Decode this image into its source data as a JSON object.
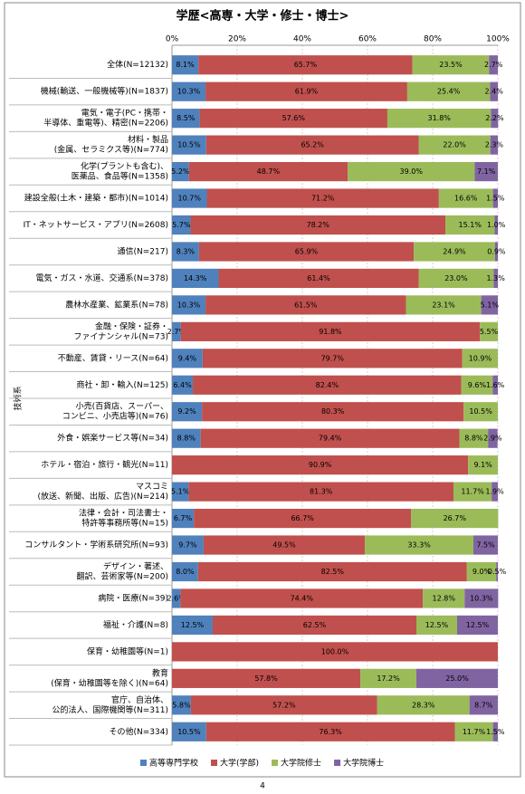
{
  "chart_data": {
    "type": "stacked-barh",
    "title": "学歴<高専・大学・修士・博士>",
    "ylabel": "技術系",
    "page_number": "4",
    "xlim": [
      0,
      100
    ],
    "xticks": [
      {
        "value": 0,
        "label": "0%"
      },
      {
        "value": 20,
        "label": "20%"
      },
      {
        "value": 40,
        "label": "40%"
      },
      {
        "value": 60,
        "label": "60%"
      },
      {
        "value": 80,
        "label": "80%"
      },
      {
        "value": 100,
        "label": "100%"
      }
    ],
    "grid": true,
    "legend": "bottom",
    "categories": [
      [
        "全体(N=12132)"
      ],
      [
        "機械(輸送、一般機械等)(N=1837)"
      ],
      [
        "電気・電子(PC・携帯・",
        "半導体、重電等)、精密(N=2206)"
      ],
      [
        "材料・製品",
        "(金属、セラミクス等)(N=774)"
      ],
      [
        "化学(プラントも含む)、",
        "医薬品、食品等(N=1358)"
      ],
      [
        "建設全般(土木・建築・都市)(N=1014)"
      ],
      [
        "IT・ネットサービス・アプリ(N=2608)"
      ],
      [
        "通信(N=217)"
      ],
      [
        "電気・ガス・水道、交通系(N=378)"
      ],
      [
        "農林水産業、鉱業系(N=78)"
      ],
      [
        "金融・保険・証券・",
        "ファイナンシャル(N=73)"
      ],
      [
        "不動産、賃貸・リース(N=64)"
      ],
      [
        "商社・卸・輸入(N=125)"
      ],
      [
        "小売(百貨店、スーパー、",
        "コンビニ、小売店等)(N=76)"
      ],
      [
        "外食・娯楽サービス等(N=34)"
      ],
      [
        "ホテル・宿泊・旅行・観光(N=11)"
      ],
      [
        "マスコミ",
        "(放送、新聞、出版、広告)(N=214)"
      ],
      [
        "法律・会計・司法書士・",
        "特許等事務所等(N=15)"
      ],
      [
        "コンサルタント・学術系研究所(N=93)"
      ],
      [
        "デザイン・著述、",
        "翻訳、芸術家等(N=200)"
      ],
      [
        "病院・医療(N=39)"
      ],
      [
        "福祉・介護(N=8)"
      ],
      [
        "保育・幼稚園等(N=1)"
      ],
      [
        "教育",
        "(保育・幼稚園等を除く)(N=64)"
      ],
      [
        "官庁、自治体、",
        "公的法人、国際機関等(N=311)"
      ],
      [
        "その他(N=334)"
      ]
    ],
    "series": [
      {
        "name": "高等専門学校",
        "color": "#4f81bd",
        "values": [
          8.1,
          10.3,
          8.5,
          10.5,
          5.2,
          10.7,
          5.7,
          8.3,
          14.3,
          10.3,
          2.7,
          9.4,
          6.4,
          9.2,
          8.8,
          null,
          5.1,
          6.7,
          9.7,
          8.0,
          2.6,
          12.5,
          null,
          null,
          5.8,
          10.5
        ],
        "value_labels": [
          "8.1%",
          "10.3%",
          "8.5%",
          "10.5%",
          "5.2%",
          "10.7%",
          "5.7%",
          "8.3%",
          "14.3%",
          "10.3%",
          "2.7%",
          "9.4%",
          "6.4%",
          "9.2%",
          "8.8%",
          null,
          "5.1%",
          "6.7%",
          "9.7%",
          "8.0%",
          "2.6%",
          "12.5%",
          null,
          null,
          "5.8%",
          "10.5%"
        ]
      },
      {
        "name": "大学(学部)",
        "color": "#c0504d",
        "values": [
          65.7,
          61.9,
          57.6,
          65.2,
          48.7,
          71.2,
          78.2,
          65.9,
          61.4,
          61.5,
          91.8,
          79.7,
          82.4,
          80.3,
          79.4,
          90.9,
          81.3,
          66.7,
          49.5,
          82.5,
          74.4,
          62.5,
          100.0,
          57.8,
          57.2,
          76.3
        ],
        "value_labels": [
          "65.7%",
          "61.9%",
          "57.6%",
          "65.2%",
          "48.7%",
          "71.2%",
          "78.2%",
          "65.9%",
          "61.4%",
          "61.5%",
          "91.8%",
          "79.7%",
          "82.4%",
          "80.3%",
          "79.4%",
          "90.9%",
          "81.3%",
          "66.7%",
          "49.5%",
          "82.5%",
          "74.4%",
          "62.5%",
          "100.0%",
          "57.8%",
          "57.2%",
          "76.3%"
        ]
      },
      {
        "name": "大学院修士",
        "color": "#9bbb59",
        "values": [
          23.5,
          25.4,
          31.8,
          22.0,
          39.0,
          16.6,
          15.1,
          24.9,
          23.0,
          23.1,
          5.5,
          10.9,
          9.6,
          10.5,
          8.8,
          9.1,
          11.7,
          26.7,
          33.3,
          9.0,
          12.8,
          12.5,
          null,
          17.2,
          28.3,
          11.7
        ],
        "value_labels": [
          "23.5%",
          "25.4%",
          "31.8%",
          "22.0%",
          "39.0%",
          "16.6%",
          "15.1%",
          "24.9%",
          "23.0%",
          "23.1%",
          "5.5%",
          "10.9%",
          "9.6%",
          "10.5%",
          "8.8%",
          "9.1%",
          "11.7%",
          "26.7%",
          "33.3%",
          "9.0%",
          "12.8%",
          "12.5%",
          null,
          "17.2%",
          "28.3%",
          "11.7%"
        ]
      },
      {
        "name": "大学院博士",
        "color": "#8064a2",
        "values": [
          2.7,
          2.4,
          2.2,
          2.3,
          7.1,
          1.5,
          1.0,
          0.9,
          1.3,
          5.1,
          null,
          null,
          1.6,
          null,
          2.9,
          null,
          1.9,
          null,
          7.5,
          0.5,
          10.3,
          12.5,
          null,
          25.0,
          8.7,
          1.5
        ],
        "value_labels": [
          "2.7%",
          "2.4%",
          "2.2%",
          "2.3%",
          "7.1%",
          "1.5%",
          "1.0%",
          "0.9%",
          "1.3%",
          "5.1%",
          null,
          null,
          "1.6%",
          null,
          "2.9%",
          null,
          "1.9%",
          null,
          "7.5%",
          "0.5%",
          "10.3%",
          "12.5%",
          null,
          "25.0%",
          "8.7%",
          "1.5%"
        ]
      }
    ]
  }
}
